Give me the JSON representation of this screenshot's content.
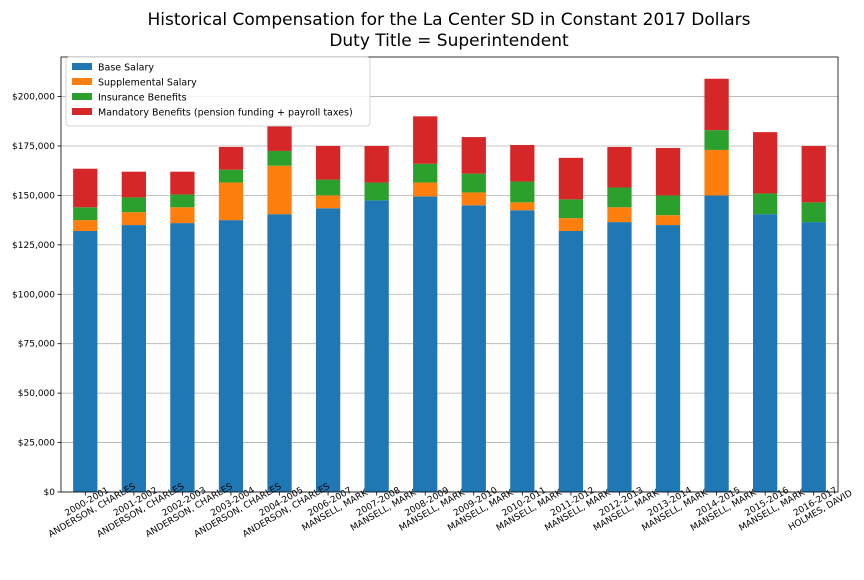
{
  "chart_data": {
    "type": "bar",
    "stacked": true,
    "title": "Historical Compensation for the La Center SD in Constant 2017 Dollars",
    "subtitle": "Duty Title = Superintendent",
    "xlabel": "",
    "ylabel": "",
    "ylim": [
      0,
      220000
    ],
    "yticks": [
      0,
      25000,
      50000,
      75000,
      100000,
      125000,
      150000,
      175000,
      200000
    ],
    "ytick_labels": [
      "$0",
      "$25,000",
      "$50,000",
      "$75,000",
      "$100,000",
      "$125,000",
      "$150,000",
      "$175,000",
      "$200,000"
    ],
    "grid": "horizontal",
    "legend_position": "top-left",
    "categories": [
      [
        "2000-2001",
        "ANDERSON, CHARLES"
      ],
      [
        "2001-2002",
        "ANDERSON, CHARLES"
      ],
      [
        "2002-2003",
        "ANDERSON, CHARLES"
      ],
      [
        "2003-2004",
        "ANDERSON, CHARLES"
      ],
      [
        "2004-2005",
        "ANDERSON, CHARLES"
      ],
      [
        "2006-2007",
        "MANSELL, MARK"
      ],
      [
        "2007-2008",
        "MANSELL, MARK"
      ],
      [
        "2008-2009",
        "MANSELL, MARK"
      ],
      [
        "2009-2010",
        "MANSELL, MARK"
      ],
      [
        "2010-2011",
        "MANSELL, MARK"
      ],
      [
        "2011-2012",
        "MANSELL, MARK"
      ],
      [
        "2012-2013",
        "MANSELL, MARK"
      ],
      [
        "2013-2014",
        "MANSELL, MARK"
      ],
      [
        "2014-2015",
        "MANSELL, MARK"
      ],
      [
        "2015-2016",
        "MANSELL, MARK"
      ],
      [
        "2016-2017",
        "HOLMES, DAVID"
      ]
    ],
    "series": [
      {
        "name": "Base Salary",
        "color": "#1f77b4",
        "values": [
          132000,
          135000,
          136000,
          137500,
          140500,
          143500,
          147500,
          149500,
          145000,
          142500,
          132000,
          136500,
          135000,
          150000,
          140500,
          136500
        ]
      },
      {
        "name": "Supplemental Salary",
        "color": "#ff7f0e",
        "values": [
          5500,
          6500,
          8000,
          19000,
          24500,
          6500,
          0,
          7000,
          6500,
          4000,
          6500,
          7500,
          5000,
          23000,
          0,
          0
        ]
      },
      {
        "name": "Insurance Benefits",
        "color": "#2ca02c",
        "values": [
          6500,
          7500,
          6500,
          6500,
          7500,
          8000,
          9000,
          9500,
          9500,
          10500,
          9500,
          10000,
          10000,
          10000,
          10500,
          10000
        ]
      },
      {
        "name": "Mandatory Benefits (pension funding + payroll taxes)",
        "color": "#d62728",
        "values": [
          19500,
          13000,
          11500,
          11500,
          12500,
          17000,
          18500,
          24000,
          18500,
          18500,
          21000,
          20500,
          24000,
          26000,
          31000,
          28500
        ]
      }
    ]
  }
}
